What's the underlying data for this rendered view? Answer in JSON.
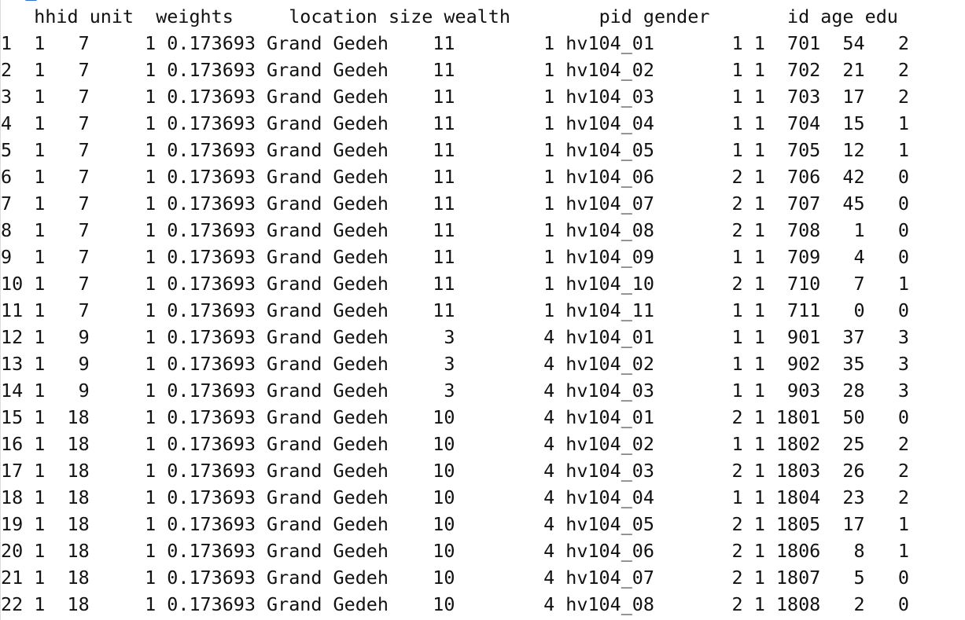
{
  "dataframe": {
    "columns": [
      "hhid",
      "unit",
      "weights",
      "location",
      "size",
      "wealth",
      "pid",
      "gender",
      "",
      "id",
      "age",
      "edu"
    ],
    "rows": [
      {
        "row": "1",
        "hhid": "1",
        "unit": "7",
        "weights": "1",
        "location_weight": "0.173693",
        "location": "Grand Gedeh",
        "size": "11",
        "wealth": "1",
        "pid": "hv104_01",
        "gender": "1",
        "extra": "1",
        "id": "701",
        "age": "54",
        "edu": "2"
      },
      {
        "row": "2",
        "hhid": "1",
        "unit": "7",
        "weights": "1",
        "location_weight": "0.173693",
        "location": "Grand Gedeh",
        "size": "11",
        "wealth": "1",
        "pid": "hv104_02",
        "gender": "1",
        "extra": "1",
        "id": "702",
        "age": "21",
        "edu": "2"
      },
      {
        "row": "3",
        "hhid": "1",
        "unit": "7",
        "weights": "1",
        "location_weight": "0.173693",
        "location": "Grand Gedeh",
        "size": "11",
        "wealth": "1",
        "pid": "hv104_03",
        "gender": "1",
        "extra": "1",
        "id": "703",
        "age": "17",
        "edu": "2"
      },
      {
        "row": "4",
        "hhid": "1",
        "unit": "7",
        "weights": "1",
        "location_weight": "0.173693",
        "location": "Grand Gedeh",
        "size": "11",
        "wealth": "1",
        "pid": "hv104_04",
        "gender": "1",
        "extra": "1",
        "id": "704",
        "age": "15",
        "edu": "1"
      },
      {
        "row": "5",
        "hhid": "1",
        "unit": "7",
        "weights": "1",
        "location_weight": "0.173693",
        "location": "Grand Gedeh",
        "size": "11",
        "wealth": "1",
        "pid": "hv104_05",
        "gender": "1",
        "extra": "1",
        "id": "705",
        "age": "12",
        "edu": "1"
      },
      {
        "row": "6",
        "hhid": "1",
        "unit": "7",
        "weights": "1",
        "location_weight": "0.173693",
        "location": "Grand Gedeh",
        "size": "11",
        "wealth": "1",
        "pid": "hv104_06",
        "gender": "2",
        "extra": "1",
        "id": "706",
        "age": "42",
        "edu": "0"
      },
      {
        "row": "7",
        "hhid": "1",
        "unit": "7",
        "weights": "1",
        "location_weight": "0.173693",
        "location": "Grand Gedeh",
        "size": "11",
        "wealth": "1",
        "pid": "hv104_07",
        "gender": "2",
        "extra": "1",
        "id": "707",
        "age": "45",
        "edu": "0"
      },
      {
        "row": "8",
        "hhid": "1",
        "unit": "7",
        "weights": "1",
        "location_weight": "0.173693",
        "location": "Grand Gedeh",
        "size": "11",
        "wealth": "1",
        "pid": "hv104_08",
        "gender": "2",
        "extra": "1",
        "id": "708",
        "age": "1",
        "edu": "0"
      },
      {
        "row": "9",
        "hhid": "1",
        "unit": "7",
        "weights": "1",
        "location_weight": "0.173693",
        "location": "Grand Gedeh",
        "size": "11",
        "wealth": "1",
        "pid": "hv104_09",
        "gender": "1",
        "extra": "1",
        "id": "709",
        "age": "4",
        "edu": "0"
      },
      {
        "row": "10",
        "hhid": "1",
        "unit": "7",
        "weights": "1",
        "location_weight": "0.173693",
        "location": "Grand Gedeh",
        "size": "11",
        "wealth": "1",
        "pid": "hv104_10",
        "gender": "2",
        "extra": "1",
        "id": "710",
        "age": "7",
        "edu": "1"
      },
      {
        "row": "11",
        "hhid": "1",
        "unit": "7",
        "weights": "1",
        "location_weight": "0.173693",
        "location": "Grand Gedeh",
        "size": "11",
        "wealth": "1",
        "pid": "hv104_11",
        "gender": "1",
        "extra": "1",
        "id": "711",
        "age": "0",
        "edu": "0"
      },
      {
        "row": "12",
        "hhid": "1",
        "unit": "9",
        "weights": "1",
        "location_weight": "0.173693",
        "location": "Grand Gedeh",
        "size": "3",
        "wealth": "4",
        "pid": "hv104_01",
        "gender": "1",
        "extra": "1",
        "id": "901",
        "age": "37",
        "edu": "3"
      },
      {
        "row": "13",
        "hhid": "1",
        "unit": "9",
        "weights": "1",
        "location_weight": "0.173693",
        "location": "Grand Gedeh",
        "size": "3",
        "wealth": "4",
        "pid": "hv104_02",
        "gender": "1",
        "extra": "1",
        "id": "902",
        "age": "35",
        "edu": "3"
      },
      {
        "row": "14",
        "hhid": "1",
        "unit": "9",
        "weights": "1",
        "location_weight": "0.173693",
        "location": "Grand Gedeh",
        "size": "3",
        "wealth": "4",
        "pid": "hv104_03",
        "gender": "1",
        "extra": "1",
        "id": "903",
        "age": "28",
        "edu": "3"
      },
      {
        "row": "15",
        "hhid": "1",
        "unit": "18",
        "weights": "1",
        "location_weight": "0.173693",
        "location": "Grand Gedeh",
        "size": "10",
        "wealth": "4",
        "pid": "hv104_01",
        "gender": "2",
        "extra": "1",
        "id": "1801",
        "age": "50",
        "edu": "0"
      },
      {
        "row": "16",
        "hhid": "1",
        "unit": "18",
        "weights": "1",
        "location_weight": "0.173693",
        "location": "Grand Gedeh",
        "size": "10",
        "wealth": "4",
        "pid": "hv104_02",
        "gender": "1",
        "extra": "1",
        "id": "1802",
        "age": "25",
        "edu": "2"
      },
      {
        "row": "17",
        "hhid": "1",
        "unit": "18",
        "weights": "1",
        "location_weight": "0.173693",
        "location": "Grand Gedeh",
        "size": "10",
        "wealth": "4",
        "pid": "hv104_03",
        "gender": "2",
        "extra": "1",
        "id": "1803",
        "age": "26",
        "edu": "2"
      },
      {
        "row": "18",
        "hhid": "1",
        "unit": "18",
        "weights": "1",
        "location_weight": "0.173693",
        "location": "Grand Gedeh",
        "size": "10",
        "wealth": "4",
        "pid": "hv104_04",
        "gender": "1",
        "extra": "1",
        "id": "1804",
        "age": "23",
        "edu": "2"
      },
      {
        "row": "19",
        "hhid": "1",
        "unit": "18",
        "weights": "1",
        "location_weight": "0.173693",
        "location": "Grand Gedeh",
        "size": "10",
        "wealth": "4",
        "pid": "hv104_05",
        "gender": "2",
        "extra": "1",
        "id": "1805",
        "age": "17",
        "edu": "1"
      },
      {
        "row": "20",
        "hhid": "1",
        "unit": "18",
        "weights": "1",
        "location_weight": "0.173693",
        "location": "Grand Gedeh",
        "size": "10",
        "wealth": "4",
        "pid": "hv104_06",
        "gender": "2",
        "extra": "1",
        "id": "1806",
        "age": "8",
        "edu": "1"
      },
      {
        "row": "21",
        "hhid": "1",
        "unit": "18",
        "weights": "1",
        "location_weight": "0.173693",
        "location": "Grand Gedeh",
        "size": "10",
        "wealth": "4",
        "pid": "hv104_07",
        "gender": "2",
        "extra": "1",
        "id": "1807",
        "age": "5",
        "edu": "0"
      },
      {
        "row": "22",
        "hhid": "1",
        "unit": "18",
        "weights": "1",
        "location_weight": "0.173693",
        "location": "Grand Gedeh",
        "size": "10",
        "wealth": "4",
        "pid": "hv104_08",
        "gender": "2",
        "extra": "1",
        "id": "1808",
        "age": "2",
        "edu": "0"
      }
    ]
  },
  "colors": {
    "background": "#ffffff",
    "text": "#111111",
    "cursor_accent": "#2f6fd0"
  }
}
